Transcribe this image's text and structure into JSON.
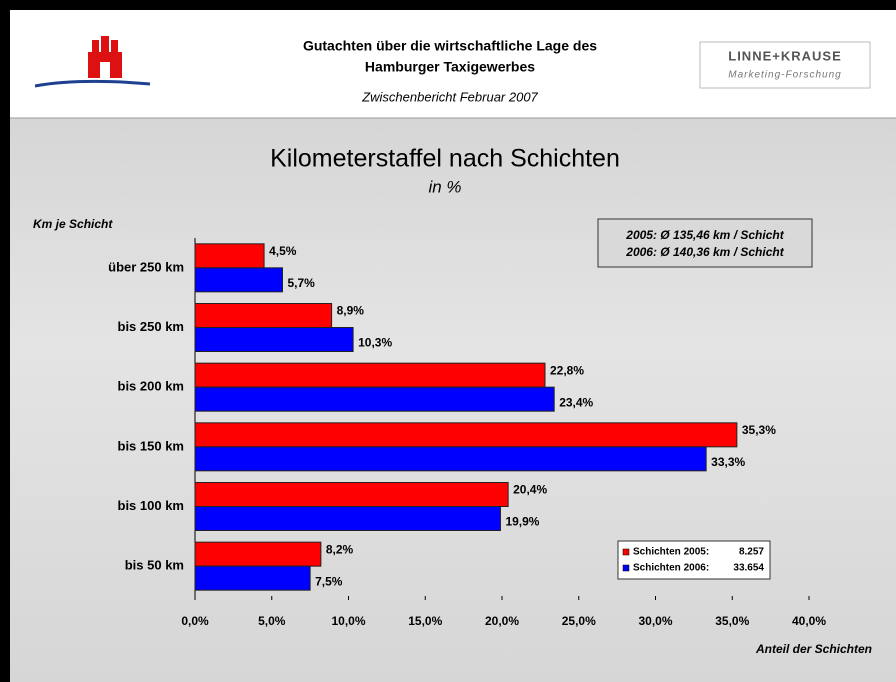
{
  "header": {
    "title_lines": [
      "Gutachten über die wirtschaftliche Lage des",
      "Hamburger Taxigewerbes"
    ],
    "subtitle": "Zwischenbericht Februar 2007",
    "logo_name": "LINNE+KRAUSE",
    "logo_tagline": "Marketing-Forschung"
  },
  "chart_data": {
    "type": "hbar",
    "title": "Kilometerstaffel nach Schichten",
    "subtitle": "in %",
    "y_label": "Km je Schicht",
    "x_label": "Anteil der Schichten",
    "annotations": [
      "2005: Ø 135,46 km / Schicht",
      "2006: Ø 140,36 km / Schicht"
    ],
    "categories": [
      "über 250 km",
      "bis 250 km",
      "bis 200 km",
      "bis 150 km",
      "bis 100 km",
      "bis 50 km"
    ],
    "series": [
      {
        "name": "Schichten 2005:",
        "count_label": "8.257",
        "color": "#ff0000",
        "values": [
          4.5,
          8.9,
          22.8,
          35.3,
          20.4,
          8.2
        ],
        "value_labels": [
          "4,5%",
          "8,9%",
          "22,8%",
          "35,3%",
          "20,4%",
          "8,2%"
        ]
      },
      {
        "name": "Schichten 2006:",
        "count_label": "33.654",
        "color": "#0000ff",
        "values": [
          5.7,
          10.3,
          23.4,
          33.3,
          19.9,
          7.5
        ],
        "value_labels": [
          "5,7%",
          "10,3%",
          "23,4%",
          "33,3%",
          "19,9%",
          "7,5%"
        ]
      }
    ],
    "xlim": [
      0,
      40
    ],
    "xticks": [
      {
        "value": 0,
        "label": "0,0%"
      },
      {
        "value": 5,
        "label": "5,0%"
      },
      {
        "value": 10,
        "label": "10,0%"
      },
      {
        "value": 15,
        "label": "15,0%"
      },
      {
        "value": 20,
        "label": "20,0%"
      },
      {
        "value": 25,
        "label": "25,0%"
      },
      {
        "value": 30,
        "label": "30,0%"
      },
      {
        "value": 35,
        "label": "35,0%"
      },
      {
        "value": 40,
        "label": "40,0%"
      }
    ],
    "grid": false,
    "legend": "lower right"
  }
}
